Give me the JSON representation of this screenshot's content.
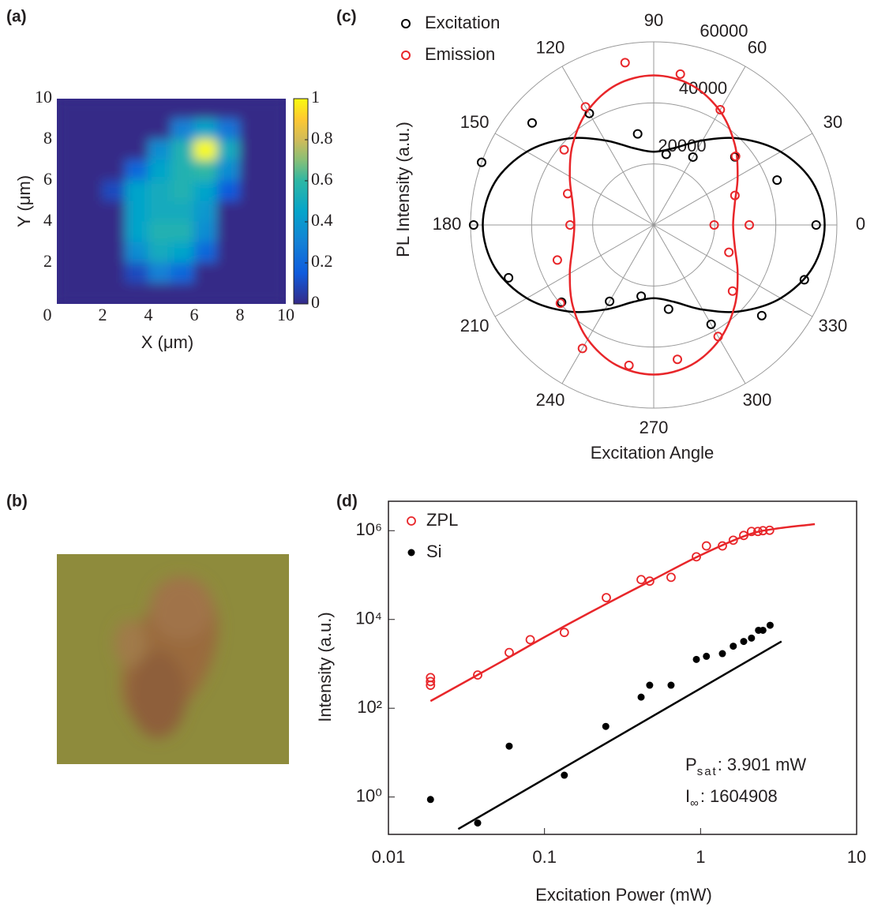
{
  "chart_data": [
    {
      "type": "heatmap",
      "label": "(a)",
      "xlabel": "X (μm)",
      "ylabel": "Y (μm)",
      "xlim": [
        0,
        10
      ],
      "ylim": [
        0,
        10
      ],
      "xticks": [
        0,
        2,
        4,
        6,
        8,
        10
      ],
      "yticks": [
        2,
        4,
        6,
        8,
        10
      ],
      "z": [
        [
          0,
          0,
          0,
          0,
          0,
          0,
          0,
          0,
          0,
          0
        ],
        [
          0,
          0,
          0,
          0,
          0,
          0.3,
          0.45,
          0.25,
          0,
          0
        ],
        [
          0,
          0,
          0,
          0,
          0.35,
          0.55,
          1,
          0.5,
          0,
          0
        ],
        [
          0,
          0,
          0,
          0.2,
          0.45,
          0.55,
          0.6,
          0.35,
          0,
          0
        ],
        [
          0,
          0,
          0.1,
          0.45,
          0.5,
          0.55,
          0.45,
          0.15,
          0,
          0
        ],
        [
          0,
          0,
          0,
          0.45,
          0.5,
          0.5,
          0.4,
          0,
          0,
          0
        ],
        [
          0,
          0,
          0,
          0.45,
          0.55,
          0.55,
          0.35,
          0,
          0,
          0
        ],
        [
          0,
          0,
          0,
          0.35,
          0.5,
          0.45,
          0.2,
          0,
          0,
          0
        ],
        [
          0,
          0,
          0,
          0.1,
          0.3,
          0.2,
          0,
          0,
          0,
          0
        ],
        [
          0,
          0,
          0,
          0,
          0,
          0,
          0,
          0,
          0,
          0
        ]
      ],
      "colormap": "parula",
      "clim": [
        0,
        1
      ],
      "cticks": [
        0,
        0.2,
        0.4,
        0.6,
        0.8,
        1
      ]
    },
    {
      "type": "image",
      "label": "(b)"
    },
    {
      "type": "polar",
      "label": "(c)",
      "xlabel": "Excitation Angle",
      "ylabel": "PL Intensity (a.u.)",
      "rlim": [
        0,
        60000
      ],
      "rticks": [
        20000,
        40000,
        60000
      ],
      "thetaticks": [
        0,
        30,
        60,
        90,
        120,
        150,
        180,
        210,
        240,
        270,
        300,
        330
      ],
      "legend": "upper left",
      "series": [
        {
          "name": "Excitation",
          "color": "#000000",
          "theta": [
            0,
            20,
            40,
            60,
            80,
            100,
            120,
            140,
            160,
            180,
            200,
            220,
            240,
            260,
            280,
            300,
            320,
            340
          ],
          "values": [
            53200,
            43000,
            34700,
            25700,
            23500,
            30300,
            42200,
            52000,
            60000,
            59000,
            50600,
            39400,
            28900,
            23700,
            28000,
            37600,
            46200,
            52500
          ]
        },
        {
          "name": "Emission",
          "color": "#e8262a",
          "theta": [
            0,
            20,
            40,
            60,
            80,
            100,
            120,
            140,
            160,
            180,
            200,
            220,
            240,
            260,
            280,
            300,
            320,
            340,
            360
          ],
          "values": [
            19800,
            28300,
            35000,
            43600,
            50200,
            54000,
            44700,
            38300,
            30000,
            27400,
            33600,
            39900,
            46700,
            46700,
            44700,
            42200,
            33700,
            26200,
            31300
          ]
        }
      ],
      "fit_theta": [
        0,
        15,
        30,
        45,
        60,
        75,
        90,
        105,
        120,
        135,
        150,
        165,
        180,
        195,
        210,
        225,
        240,
        255,
        270,
        285,
        300,
        315,
        330,
        345,
        360
      ],
      "fits": [
        {
          "color": "#000000",
          "values": [
            56000,
            53900,
            48000,
            40000,
            32000,
            26100,
            24000,
            26100,
            32000,
            40000,
            48000,
            53900,
            56000,
            53900,
            48000,
            40000,
            32000,
            26100,
            24000,
            26100,
            32000,
            40000,
            48000,
            53900,
            56000
          ]
        },
        {
          "color": "#e8262a",
          "values": [
            26000,
            27500,
            31750,
            37500,
            43250,
            47500,
            49000,
            47500,
            43250,
            37500,
            31750,
            27500,
            26000,
            27500,
            31750,
            37500,
            43250,
            47500,
            49000,
            47500,
            43250,
            37500,
            31750,
            27500,
            26000
          ]
        }
      ]
    },
    {
      "type": "scatter",
      "label": "(d)",
      "xlabel": "Excitation Power (mW)",
      "ylabel": "Intensity (a.u.)",
      "xscale": "log",
      "yscale": "log",
      "xlim": [
        0.01,
        10
      ],
      "ylim": [
        0.144,
        4600000
      ],
      "xticks": [
        0.01,
        0.1,
        1,
        10
      ],
      "yticks": [
        {
          "value": 1,
          "label": "10⁰"
        },
        {
          "value": 100,
          "label": "10²"
        },
        {
          "value": 10000,
          "label": "10⁴"
        },
        {
          "value": 1000000,
          "label": "10⁶"
        }
      ],
      "legend": "upper left",
      "series": [
        {
          "name": "ZPL",
          "color": "#e8262a",
          "marker": "open-circle",
          "x": [
            0.0186,
            0.0186,
            0.0186,
            0.0373,
            0.0594,
            0.081,
            0.134,
            0.249,
            0.416,
            0.472,
            0.647,
            0.94,
            1.09,
            1.38,
            1.62,
            1.89,
            2.12,
            2.33,
            2.51,
            2.77
          ],
          "values": [
            490,
            400,
            330,
            560,
            1800,
            3500,
            5100,
            31000,
            79000,
            73000,
            89000,
            258000,
            454000,
            454000,
            610000,
            780000,
            960000,
            960000,
            1000000,
            1020000
          ]
        },
        {
          "name": "Si",
          "color": "#000000",
          "marker": "filled-circle",
          "x": [
            0.0186,
            0.0373,
            0.0594,
            0.134,
            0.247,
            0.416,
            0.472,
            0.647,
            0.94,
            1.09,
            1.38,
            1.62,
            1.89,
            2.12,
            2.35,
            2.51,
            2.79
          ],
          "values": [
            0.88,
            0.26,
            14,
            3.1,
            39,
            178,
            330,
            330,
            1260,
            1480,
            1700,
            2500,
            3200,
            3800,
            5700,
            5700,
            7400
          ]
        }
      ],
      "fits": [
        {
          "color": "#e8262a",
          "x": [
            0.0186,
            0.05,
            0.1,
            0.2,
            0.5,
            1,
            2,
            3,
            5.4
          ],
          "values": [
            145,
            1000,
            4000,
            15000,
            80000,
            280000,
            800000,
            1100000,
            1400000
          ]
        },
        {
          "color": "#000000",
          "x": [
            0.028,
            3.3
          ],
          "values": [
            0.19,
            3200
          ]
        }
      ],
      "annotations": [
        [
          "P",
          "sat",
          ": 3.901  mW"
        ],
        [
          "I",
          "∞",
          ": 1604908"
        ]
      ]
    }
  ]
}
